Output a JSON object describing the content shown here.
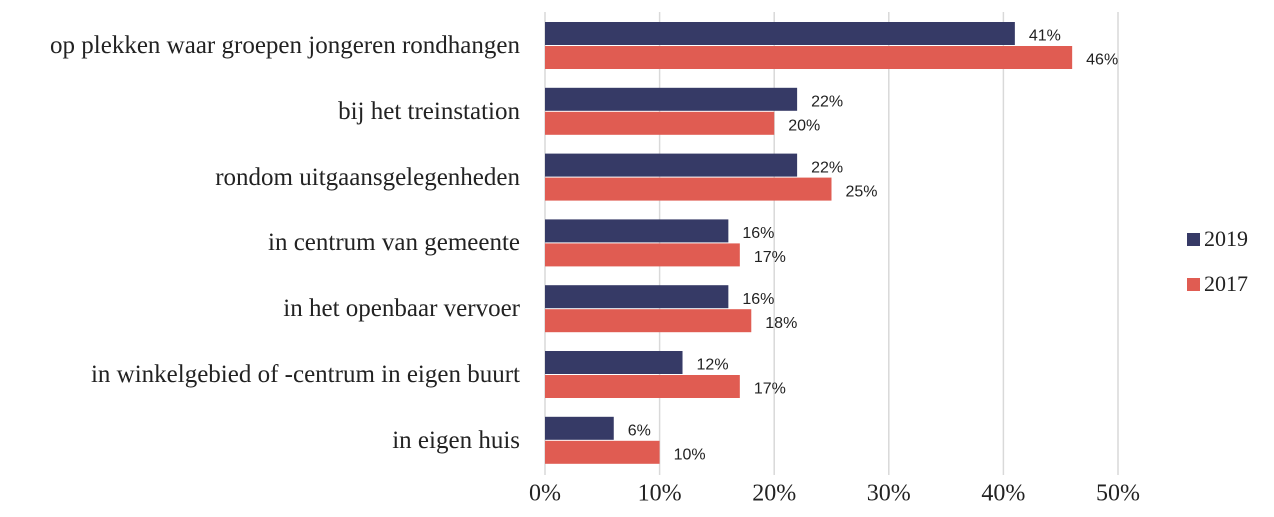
{
  "chart_data": {
    "type": "bar",
    "orientation": "horizontal",
    "categories": [
      "op plekken waar groepen jongeren rondhangen",
      "bij het treinstation",
      "rondom uitgaansgelegenheden",
      "in centrum van gemeente",
      "in het openbaar vervoer",
      "in winkelgebied of -centrum in eigen buurt",
      "in eigen huis"
    ],
    "series": [
      {
        "name": "2019",
        "color": "#363a66",
        "values": [
          41,
          22,
          22,
          16,
          16,
          12,
          6
        ],
        "value_labels": [
          "41%",
          "22%",
          "22%",
          "16%",
          "16%",
          "12%",
          "6%"
        ]
      },
      {
        "name": "2017",
        "color": "#e05c52",
        "values": [
          46,
          20,
          25,
          17,
          18,
          17,
          10
        ],
        "value_labels": [
          "46%",
          "20%",
          "25%",
          "17%",
          "18%",
          "17%",
          "10%"
        ]
      }
    ],
    "xlim": [
      0,
      50
    ],
    "xticks": [
      {
        "value": 0,
        "label": "0%"
      },
      {
        "value": 10,
        "label": "10%"
      },
      {
        "value": 20,
        "label": "20%"
      },
      {
        "value": 30,
        "label": "30%"
      },
      {
        "value": 40,
        "label": "40%"
      },
      {
        "value": 50,
        "label": "50%"
      }
    ],
    "grid": true,
    "legend": "right"
  }
}
